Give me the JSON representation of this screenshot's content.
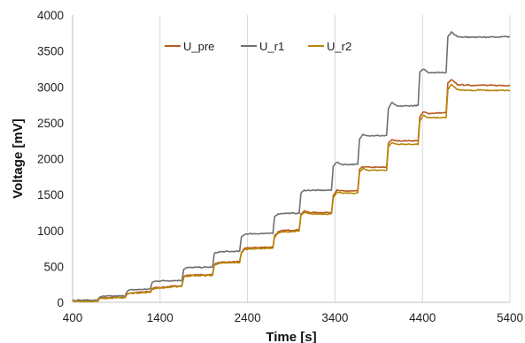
{
  "chart_data": {
    "type": "line",
    "title": "",
    "xlabel": "Time [s]",
    "ylabel": "Voltage [mV]",
    "xlim": [
      400,
      5400
    ],
    "ylim": [
      0,
      4000
    ],
    "xticks": [
      400,
      1400,
      2400,
      3400,
      4400,
      5400
    ],
    "yticks": [
      0,
      500,
      1000,
      1500,
      2000,
      2500,
      3000,
      3500,
      4000
    ],
    "grid": "vertical",
    "legend_position": "top-left-center",
    "series": [
      {
        "name": "U_pre",
        "color": "#b85a20",
        "x": [
          400,
          690,
          700,
          720,
          800,
          1000,
          1020,
          1050,
          1110,
          1290,
          1310,
          1350,
          1420,
          1650,
          1670,
          1700,
          1770,
          2000,
          2020,
          2060,
          2120,
          2310,
          2330,
          2370,
          2430,
          2690,
          2710,
          2750,
          2810,
          2990,
          3010,
          3050,
          3110,
          3360,
          3380,
          3420,
          3480,
          3660,
          3680,
          3720,
          3780,
          3990,
          4010,
          4050,
          4110,
          4350,
          4370,
          4410,
          4470,
          4670,
          4690,
          4730,
          4800,
          4990,
          5010,
          5040,
          5120,
          5400
        ],
        "values": [
          20,
          20,
          45,
          60,
          65,
          70,
          115,
          130,
          135,
          150,
          195,
          205,
          210,
          235,
          360,
          375,
          380,
          385,
          530,
          550,
          555,
          570,
          700,
          750,
          760,
          770,
          930,
          980,
          1000,
          1010,
          1230,
          1270,
          1250,
          1250,
          1490,
          1560,
          1550,
          1550,
          1850,
          1890,
          1880,
          1880,
          2220,
          2260,
          2250,
          2250,
          2580,
          2650,
          2630,
          2640,
          3050,
          3100,
          3030,
          3020,
          3020,
          3030,
          3020,
          3020
        ]
      },
      {
        "name": "U_r1",
        "color": "#707070",
        "x": [
          400,
          690,
          700,
          720,
          800,
          1000,
          1020,
          1050,
          1110,
          1290,
          1310,
          1350,
          1420,
          1650,
          1670,
          1700,
          1770,
          2000,
          2020,
          2060,
          2120,
          2310,
          2330,
          2370,
          2430,
          2690,
          2710,
          2750,
          2810,
          2990,
          3010,
          3050,
          3110,
          3360,
          3380,
          3420,
          3480,
          3660,
          3680,
          3720,
          3780,
          3990,
          4010,
          4050,
          4110,
          4350,
          4370,
          4410,
          4470,
          4670,
          4690,
          4730,
          4800,
          4990,
          5010,
          5040,
          5120,
          5400
        ],
        "values": [
          30,
          30,
          60,
          80,
          85,
          90,
          150,
          170,
          175,
          185,
          280,
          295,
          300,
          305,
          460,
          480,
          485,
          490,
          680,
          700,
          705,
          710,
          910,
          950,
          955,
          960,
          1200,
          1230,
          1240,
          1240,
          1520,
          1560,
          1560,
          1560,
          1900,
          1950,
          1920,
          1920,
          2270,
          2340,
          2320,
          2320,
          2700,
          2780,
          2730,
          2740,
          3200,
          3250,
          3200,
          3200,
          3700,
          3760,
          3700,
          3690,
          3690,
          3700,
          3690,
          3700
        ]
      },
      {
        "name": "U_r2",
        "color": "#b8860b",
        "x": [
          400,
          690,
          700,
          720,
          800,
          1000,
          1020,
          1050,
          1110,
          1290,
          1310,
          1350,
          1420,
          1650,
          1670,
          1700,
          1770,
          2000,
          2020,
          2060,
          2120,
          2310,
          2330,
          2370,
          2430,
          2690,
          2710,
          2750,
          2810,
          2990,
          3010,
          3050,
          3110,
          3360,
          3380,
          3420,
          3480,
          3660,
          3680,
          3720,
          3780,
          3990,
          4010,
          4050,
          4110,
          4350,
          4370,
          4410,
          4470,
          4670,
          4690,
          4730,
          4800,
          4990,
          5010,
          5040,
          5120,
          5400
        ],
        "values": [
          15,
          15,
          40,
          55,
          60,
          65,
          110,
          125,
          130,
          140,
          185,
          195,
          200,
          225,
          350,
          365,
          370,
          375,
          520,
          540,
          545,
          555,
          690,
          735,
          745,
          755,
          910,
          965,
          980,
          990,
          1210,
          1250,
          1230,
          1230,
          1460,
          1530,
          1520,
          1520,
          1810,
          1860,
          1840,
          1840,
          2170,
          2220,
          2200,
          2200,
          2520,
          2600,
          2570,
          2570,
          2960,
          3030,
          2960,
          2950,
          2950,
          2960,
          2950,
          2950
        ]
      }
    ]
  }
}
